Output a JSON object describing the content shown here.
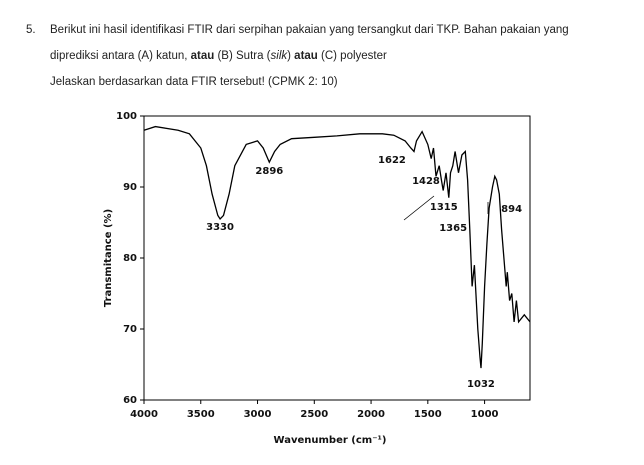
{
  "question": {
    "number": "5.",
    "line1": "Berikut ini hasil identifikasi FTIR dari serpihan pakaian yang tersangkut dari TKP. Bahan pakaian yang",
    "line2": [
      "diprediksi antara (A) katun, ",
      "atau",
      " (B) Sutra (",
      "silk",
      ") ",
      "atau",
      " (C) polyester"
    ],
    "line3": "Jelaskan berdasarkan data FTIR tersebut! (CPMK 2: 10)"
  },
  "chart_data": {
    "type": "line",
    "x_label": "Wavenumber (cm⁻¹)",
    "y_label": "Transmitance (%)",
    "xlim": [
      4000,
      600
    ],
    "ylim": [
      60,
      100
    ],
    "xticks": [
      4000,
      3500,
      3000,
      2500,
      2000,
      1500,
      1000
    ],
    "yticks": [
      60,
      70,
      80,
      90,
      100
    ],
    "color": "#000000",
    "x": [
      4000,
      3900,
      3700,
      3600,
      3500,
      3450,
      3400,
      3350,
      3330,
      3300,
      3250,
      3200,
      3100,
      3000,
      2950,
      2896,
      2850,
      2800,
      2700,
      2500,
      2300,
      2100,
      2000,
      1900,
      1800,
      1700,
      1650,
      1622,
      1600,
      1550,
      1500,
      1470,
      1450,
      1428,
      1400,
      1380,
      1365,
      1340,
      1315,
      1300,
      1280,
      1260,
      1230,
      1200,
      1170,
      1150,
      1130,
      1110,
      1090,
      1060,
      1040,
      1032,
      1020,
      1000,
      980,
      960,
      930,
      910,
      894,
      870,
      850,
      830,
      810,
      800,
      780,
      760,
      740,
      720,
      700,
      650,
      600
    ],
    "values": [
      98,
      98.5,
      98,
      97.5,
      95.5,
      93,
      89,
      86,
      85.5,
      86,
      89,
      93,
      96,
      96.5,
      95.5,
      93.5,
      95,
      96,
      96.8,
      97,
      97.2,
      97.5,
      97.5,
      97.5,
      97.3,
      96.5,
      95.5,
      95,
      96.5,
      97.8,
      96,
      94,
      95.5,
      91.5,
      93,
      91,
      89.5,
      92,
      88.5,
      92,
      93,
      95,
      92,
      94.5,
      95,
      91,
      84,
      76,
      79,
      70,
      66,
      64.5,
      68,
      76,
      82,
      87,
      90,
      91.5,
      91,
      89,
      84,
      80,
      76,
      78,
      74,
      75,
      71,
      74,
      71,
      72,
      71
    ],
    "peak_labels": [
      3330,
      2896,
      1622,
      1428,
      1315,
      1365,
      1032,
      894
    ]
  }
}
